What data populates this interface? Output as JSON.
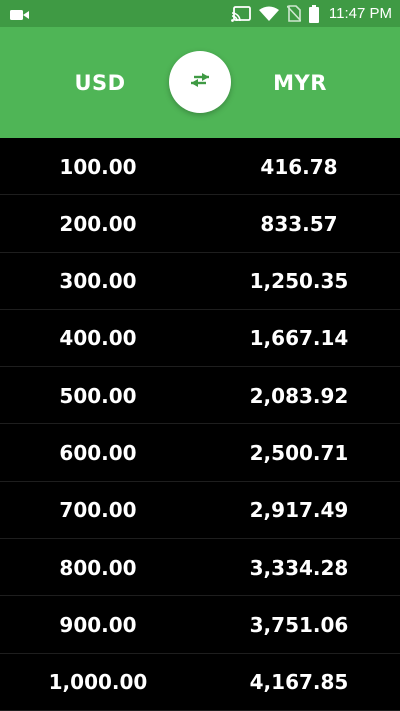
{
  "colors": {
    "status_bar": "#3f9a44",
    "header": "#4fb556",
    "background": "#000000",
    "text": "#ffffff",
    "swap_icon": "#3f9a44"
  },
  "status_bar": {
    "time": "11:47 PM",
    "icons": [
      "video-camera-icon",
      "cast-icon",
      "wifi-icon",
      "no-sim-icon",
      "battery-icon"
    ]
  },
  "header": {
    "from_currency": "USD",
    "to_currency": "MYR",
    "swap_icon": "swap-arrows-icon"
  },
  "rows": [
    {
      "from": "100.00",
      "to": "416.78"
    },
    {
      "from": "200.00",
      "to": "833.57"
    },
    {
      "from": "300.00",
      "to": "1,250.35"
    },
    {
      "from": "400.00",
      "to": "1,667.14"
    },
    {
      "from": "500.00",
      "to": "2,083.92"
    },
    {
      "from": "600.00",
      "to": "2,500.71"
    },
    {
      "from": "700.00",
      "to": "2,917.49"
    },
    {
      "from": "800.00",
      "to": "3,334.28"
    },
    {
      "from": "900.00",
      "to": "3,751.06"
    },
    {
      "from": "1,000.00",
      "to": "4,167.85"
    }
  ]
}
